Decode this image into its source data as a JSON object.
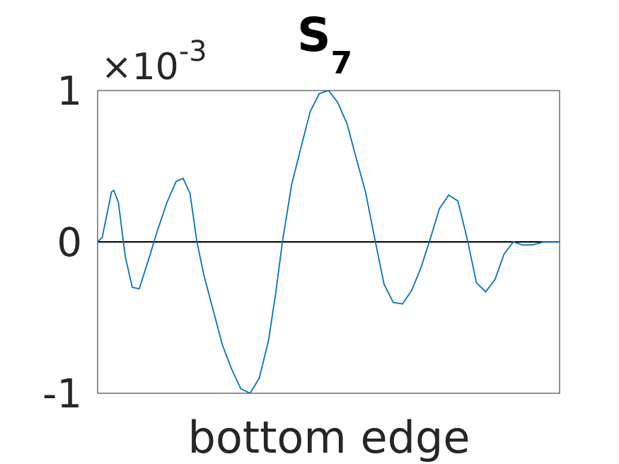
{
  "chart_data": {
    "type": "line",
    "title": {
      "main": "S",
      "subscript": "7"
    },
    "xlabel": "bottom edge",
    "ylabel": "",
    "y_multiplier": {
      "symbol": "×",
      "base": "10",
      "exponent": "-3"
    },
    "xlim": [
      0,
      1
    ],
    "ylim": [
      -1,
      1
    ],
    "yticks": [
      -1,
      0,
      1
    ],
    "ytick_labels": [
      "-1",
      "0",
      "1"
    ],
    "xticks": [],
    "grid": false,
    "legend": "none",
    "reference_line": {
      "y": 0,
      "color": "#000000"
    },
    "colors": {
      "series": "#0072BD",
      "axes": "#262626",
      "reference": "#000000"
    },
    "series": [
      {
        "x": [
          0,
          0.01,
          0.02,
          0.03,
          0.035,
          0.045,
          0.06,
          0.075,
          0.09,
          0.11,
          0.13,
          0.15,
          0.17,
          0.185,
          0.2,
          0.215,
          0.23,
          0.25,
          0.27,
          0.29,
          0.31,
          0.33,
          0.35,
          0.37,
          0.385,
          0.4,
          0.42,
          0.44,
          0.46,
          0.48,
          0.5,
          0.52,
          0.54,
          0.56,
          0.58,
          0.6,
          0.62,
          0.64,
          0.66,
          0.68,
          0.7,
          0.72,
          0.74,
          0.76,
          0.78,
          0.8,
          0.82,
          0.84,
          0.86,
          0.88,
          0.9,
          0.92,
          0.94,
          0.955,
          0.965,
          0.975,
          0.985,
          1.0
        ],
        "y": [
          0.0,
          0.03,
          0.18,
          0.33,
          0.34,
          0.26,
          -0.1,
          -0.3,
          -0.31,
          -0.12,
          0.08,
          0.26,
          0.4,
          0.42,
          0.32,
          0.0,
          -0.22,
          -0.45,
          -0.68,
          -0.84,
          -0.97,
          -1.0,
          -0.9,
          -0.65,
          -0.35,
          0.0,
          0.38,
          0.62,
          0.86,
          0.98,
          1.0,
          0.92,
          0.78,
          0.55,
          0.33,
          0.02,
          -0.28,
          -0.4,
          -0.41,
          -0.32,
          -0.17,
          0.02,
          0.22,
          0.31,
          0.27,
          0.02,
          -0.27,
          -0.33,
          -0.25,
          -0.08,
          0.0,
          -0.02,
          -0.02,
          -0.01,
          0.0,
          0.0,
          0.0,
          0.0
        ]
      }
    ]
  }
}
